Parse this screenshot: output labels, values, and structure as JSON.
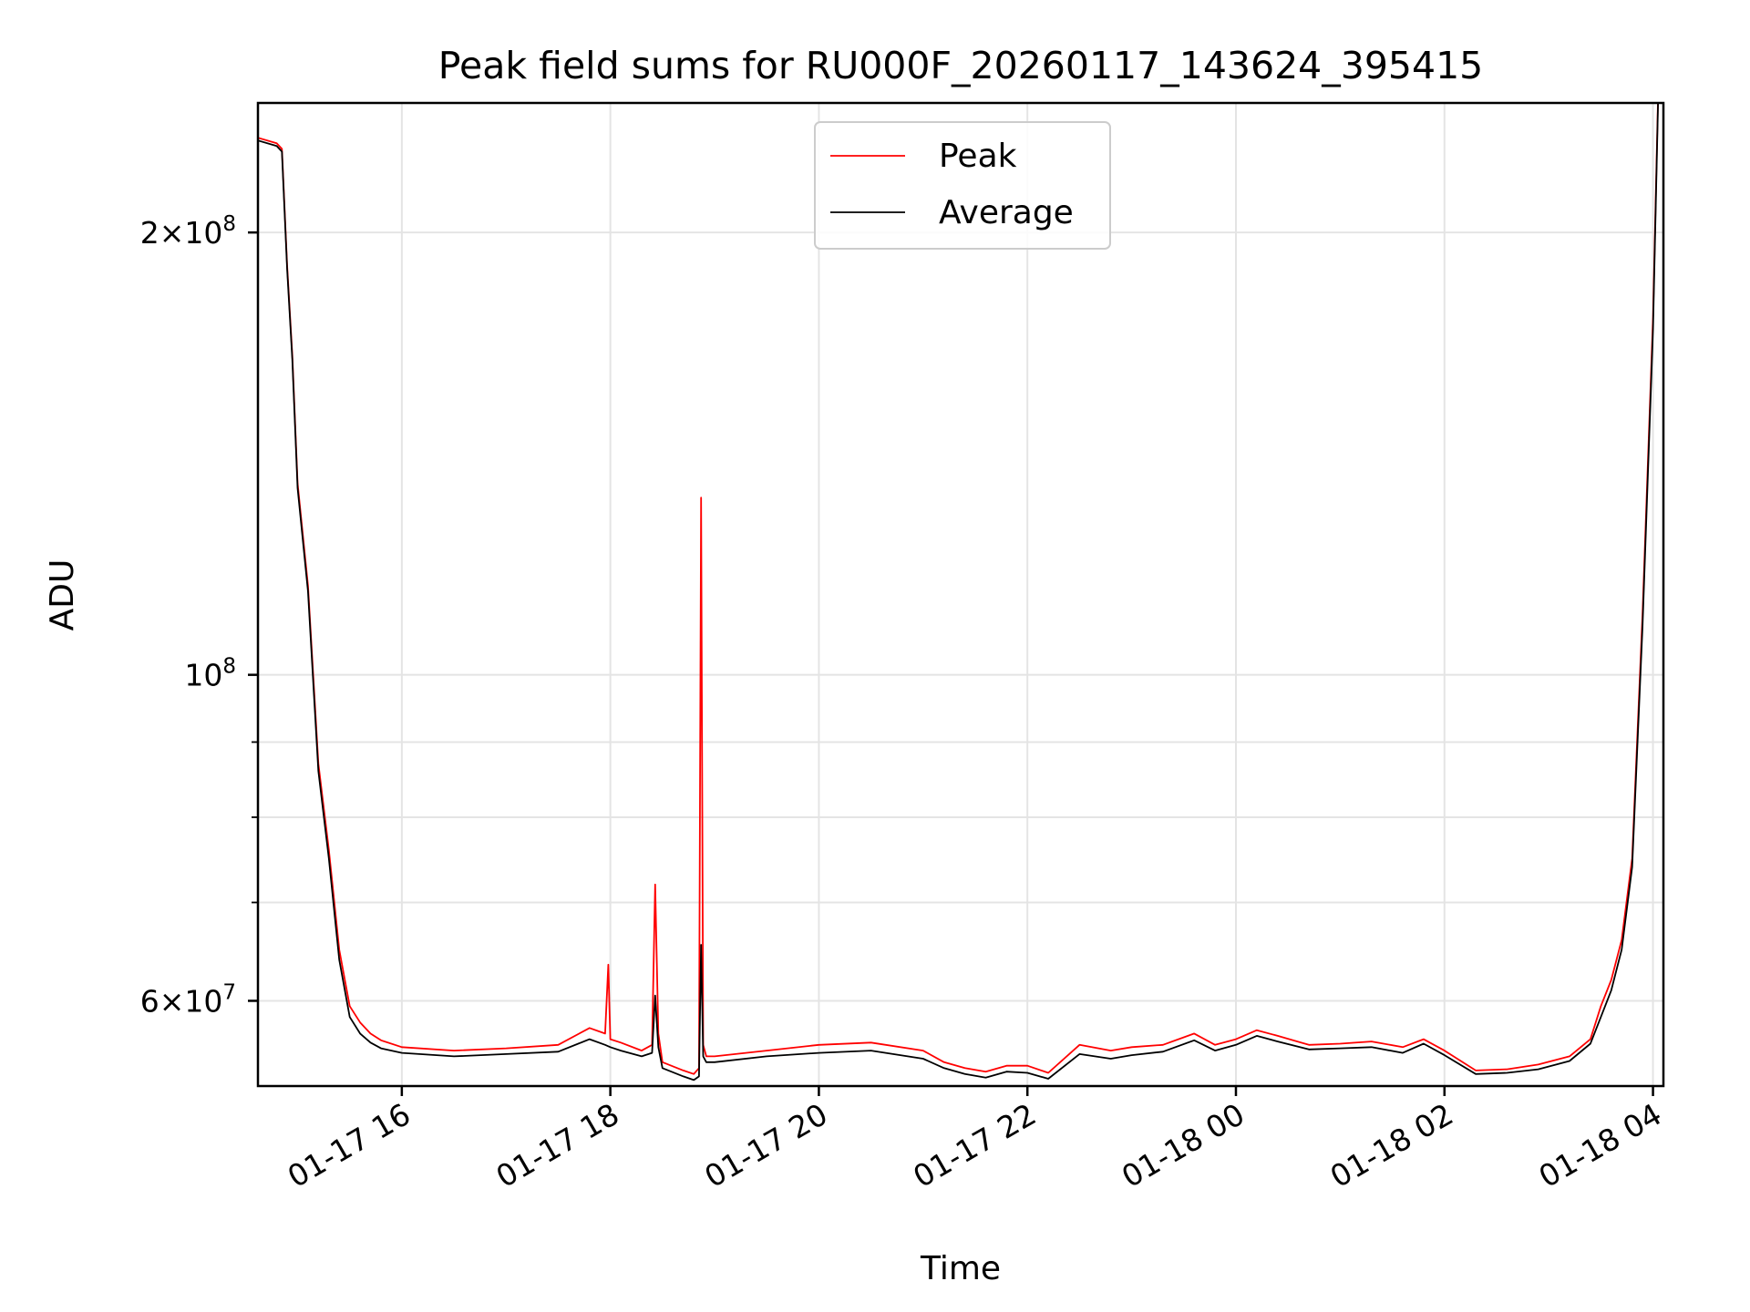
{
  "chart_data": {
    "type": "line",
    "title": "Peak field sums for RU000F_20260117_143624_395415",
    "xlabel": "Time",
    "ylabel": "ADU",
    "yscale": "log",
    "ylim": [
      52500000,
      245000000
    ],
    "xlim_hours": [
      14.62,
      28.1
    ],
    "x_unit": "hours since 2026-01-17 00:00",
    "grid": true,
    "legend_position": "upper center",
    "x_ticks": [
      {
        "value": 16,
        "label": "01-17 16"
      },
      {
        "value": 18,
        "label": "01-17 18"
      },
      {
        "value": 20,
        "label": "01-17 20"
      },
      {
        "value": 22,
        "label": "01-17 22"
      },
      {
        "value": 24,
        "label": "01-18 00"
      },
      {
        "value": 26,
        "label": "01-18 02"
      },
      {
        "value": 28,
        "label": "01-18 04"
      }
    ],
    "y_ticks_major": [
      {
        "value": 200000000,
        "mantissa": "2",
        "exponent": "8"
      },
      {
        "value": 100000000,
        "mantissa": "",
        "exponent": "8"
      },
      {
        "value": 60000000,
        "mantissa": "6",
        "exponent": "7"
      }
    ],
    "y_ticks_minor": [
      90000000,
      80000000,
      70000000
    ],
    "series": [
      {
        "name": "Peak",
        "color": "#ff0000",
        "x": [
          14.62,
          14.8,
          14.85,
          14.9,
          14.95,
          15.0,
          15.1,
          15.2,
          15.3,
          15.4,
          15.5,
          15.6,
          15.7,
          15.8,
          16.0,
          16.5,
          17.0,
          17.5,
          17.8,
          17.95,
          17.98,
          18.0,
          18.1,
          18.3,
          18.4,
          18.43,
          18.46,
          18.5,
          18.7,
          18.8,
          18.85,
          18.87,
          18.89,
          18.92,
          19.0,
          19.5,
          20.0,
          20.5,
          21.0,
          21.2,
          21.4,
          21.6,
          21.8,
          22.0,
          22.2,
          22.5,
          22.8,
          23.0,
          23.3,
          23.6,
          23.8,
          24.0,
          24.2,
          24.4,
          24.7,
          25.0,
          25.3,
          25.6,
          25.8,
          26.0,
          26.3,
          26.6,
          26.9,
          27.2,
          27.4,
          27.5,
          27.6,
          27.7,
          27.8,
          27.9,
          28.0,
          28.05
        ],
        "values": [
          232000000,
          230000000,
          228000000,
          190000000,
          165000000,
          135000000,
          115000000,
          87000000,
          76000000,
          65000000,
          59500000,
          58000000,
          57000000,
          56400000,
          55800000,
          55500000,
          55700000,
          56000000,
          57500000,
          57000000,
          63500000,
          56500000,
          56200000,
          55500000,
          56000000,
          72000000,
          57000000,
          54500000,
          53800000,
          53500000,
          54000000,
          132000000,
          56000000,
          55000000,
          55000000,
          55500000,
          56000000,
          56200000,
          55500000,
          54500000,
          54000000,
          53700000,
          54200000,
          54200000,
          53600000,
          56000000,
          55500000,
          55800000,
          56000000,
          57000000,
          56000000,
          56500000,
          57300000,
          56800000,
          56000000,
          56100000,
          56300000,
          55800000,
          56500000,
          55500000,
          53800000,
          53900000,
          54300000,
          55000000,
          56500000,
          59500000,
          62000000,
          66000000,
          75000000,
          110000000,
          175000000,
          250000000
        ]
      },
      {
        "name": "Average",
        "color": "#000000",
        "x": [
          14.62,
          14.8,
          14.85,
          14.9,
          14.95,
          15.0,
          15.1,
          15.2,
          15.3,
          15.4,
          15.5,
          15.6,
          15.7,
          15.8,
          16.0,
          16.5,
          17.0,
          17.5,
          17.8,
          17.95,
          18.0,
          18.1,
          18.3,
          18.4,
          18.43,
          18.46,
          18.5,
          18.7,
          18.8,
          18.85,
          18.87,
          18.89,
          18.92,
          19.0,
          19.5,
          20.0,
          20.5,
          21.0,
          21.2,
          21.4,
          21.6,
          21.8,
          22.0,
          22.2,
          22.5,
          22.8,
          23.0,
          23.3,
          23.6,
          23.8,
          24.0,
          24.2,
          24.4,
          24.7,
          25.0,
          25.3,
          25.6,
          25.8,
          26.0,
          26.3,
          26.6,
          26.9,
          27.2,
          27.4,
          27.5,
          27.6,
          27.7,
          27.8,
          27.9,
          28.0,
          28.05
        ],
        "values": [
          231000000,
          229000000,
          227000000,
          189000000,
          164000000,
          134000000,
          114000000,
          86000000,
          75000000,
          64000000,
          58500000,
          57000000,
          56200000,
          55700000,
          55300000,
          55000000,
          55200000,
          55400000,
          56500000,
          56000000,
          55800000,
          55500000,
          55000000,
          55300000,
          60500000,
          55800000,
          54000000,
          53300000,
          53000000,
          53300000,
          65500000,
          55000000,
          54500000,
          54500000,
          55000000,
          55300000,
          55500000,
          54800000,
          54000000,
          53500000,
          53200000,
          53700000,
          53600000,
          53100000,
          55200000,
          54800000,
          55100000,
          55400000,
          56400000,
          55500000,
          56000000,
          56800000,
          56300000,
          55600000,
          55700000,
          55800000,
          55300000,
          56100000,
          55100000,
          53500000,
          53600000,
          53900000,
          54600000,
          56100000,
          58500000,
          61000000,
          65000000,
          74000000,
          108000000,
          172000000,
          248000000
        ]
      }
    ]
  }
}
